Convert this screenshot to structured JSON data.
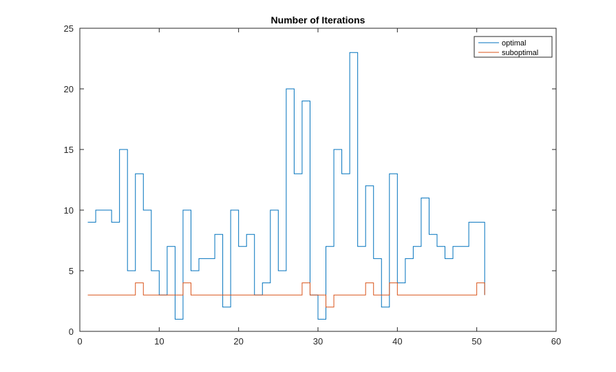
{
  "chart_data": {
    "type": "line",
    "style": "stairs",
    "title": "Number of Iterations",
    "xlabel": "",
    "ylabel": "",
    "xlim": [
      0,
      60
    ],
    "ylim": [
      0,
      25
    ],
    "xticks": [
      0,
      10,
      20,
      30,
      40,
      50,
      60
    ],
    "yticks": [
      0,
      5,
      10,
      15,
      20,
      25
    ],
    "grid": false,
    "legend": {
      "placement": "top-right"
    },
    "x": [
      1,
      2,
      3,
      4,
      5,
      6,
      7,
      8,
      9,
      10,
      11,
      12,
      13,
      14,
      15,
      16,
      17,
      18,
      19,
      20,
      21,
      22,
      23,
      24,
      25,
      26,
      27,
      28,
      29,
      30,
      31,
      32,
      33,
      34,
      35,
      36,
      37,
      38,
      39,
      40,
      41,
      42,
      43,
      44,
      45,
      46,
      47,
      48,
      49,
      50,
      51
    ],
    "series": [
      {
        "name": "optimal",
        "color": "#0072BD",
        "values": [
          9,
          10,
          10,
          9,
          15,
          5,
          13,
          10,
          5,
          3,
          7,
          1,
          10,
          5,
          6,
          6,
          8,
          2,
          10,
          7,
          8,
          3,
          4,
          10,
          5,
          20,
          13,
          19,
          3,
          1,
          7,
          15,
          13,
          23,
          7,
          12,
          6,
          2,
          13,
          4,
          6,
          7,
          11,
          8,
          7,
          6,
          7,
          7,
          9,
          9,
          3
        ]
      },
      {
        "name": "suboptimal",
        "color": "#D95319",
        "values": [
          3,
          3,
          3,
          3,
          3,
          3,
          4,
          3,
          3,
          3,
          3,
          3,
          4,
          3,
          3,
          3,
          3,
          3,
          3,
          3,
          3,
          3,
          3,
          3,
          3,
          3,
          3,
          4,
          3,
          3,
          2,
          3,
          3,
          3,
          3,
          4,
          3,
          3,
          4,
          3,
          3,
          3,
          3,
          3,
          3,
          3,
          3,
          3,
          3,
          4,
          3
        ]
      }
    ]
  }
}
